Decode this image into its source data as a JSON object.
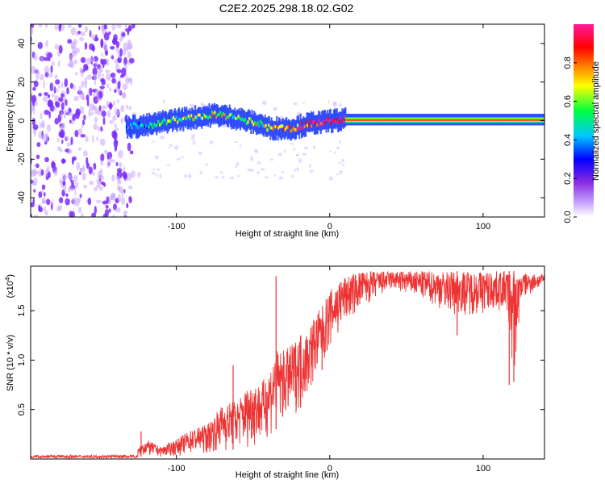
{
  "title": "C2E2.2025.298.18.02.G02",
  "chart_data": [
    {
      "type": "heatmap",
      "xlabel": "Height of straight line (km)",
      "ylabel": "Frequency (Hz)",
      "xlim": [
        -195,
        140
      ],
      "ylim": [
        -50,
        50
      ],
      "x_ticks": [
        -100,
        0,
        100
      ],
      "y_ticks": [
        -40,
        -20,
        0,
        20,
        40
      ],
      "noise_region_x": [
        -195,
        -128
      ],
      "ridge": {
        "x": [
          -133,
          -125,
          -115,
          -105,
          -95,
          -85,
          -75,
          -65,
          -55,
          -45,
          -40,
          -35,
          -30,
          -25,
          -20,
          -15,
          -10,
          -5,
          0,
          5,
          10,
          20,
          40,
          60,
          80,
          100,
          120,
          140
        ],
        "freq": [
          -3,
          -3,
          -2,
          0,
          1,
          2,
          3,
          2,
          0,
          -2,
          -4,
          -4,
          -4,
          -4,
          -3,
          -2,
          -1,
          -1,
          0,
          0,
          0.5,
          0.5,
          0.5,
          0.5,
          0.5,
          0.5,
          0.5,
          0.5
        ],
        "amplitude": [
          0.3,
          0.45,
          0.5,
          0.55,
          0.6,
          0.6,
          0.65,
          0.6,
          0.55,
          0.6,
          0.7,
          0.75,
          0.75,
          0.8,
          0.85,
          0.85,
          0.9,
          0.9,
          0.95,
          0.98,
          1.0,
          1.0,
          1.0,
          1.0,
          1.0,
          1.0,
          1.0,
          1.0
        ]
      },
      "colorbar": {
        "label": "Normalized spectral amplitude",
        "ticks": [
          0.0,
          0.2,
          0.4,
          0.6,
          0.8
        ],
        "range": [
          0,
          1
        ],
        "stops": [
          "#ffffff",
          "#9b30ff",
          "#0000ff",
          "#00c8ff",
          "#00ff00",
          "#ffff00",
          "#ff8000",
          "#ff0000",
          "#ff00aa"
        ]
      },
      "colors": {
        "noise": "#7b2cff",
        "noise_light": "#c9a6ff"
      }
    },
    {
      "type": "line",
      "xlabel": "Height of straight line (km)",
      "ylabel": "SNR (10 * v/v)",
      "scale_label": "(x10^4)",
      "scale_base": "(x10",
      "scale_exp": "4",
      "scale_close": ")",
      "xlim": [
        -195,
        140
      ],
      "ylim": [
        0,
        1.95
      ],
      "x_ticks": [
        -100,
        0,
        100
      ],
      "y_ticks": [
        0.5,
        1.0,
        1.5
      ],
      "color": "#ee3333",
      "envelope": {
        "x": [
          -195,
          -150,
          -130,
          -125,
          -120,
          -110,
          -100,
          -90,
          -80,
          -70,
          -60,
          -50,
          -45,
          -40,
          -35,
          -30,
          -25,
          -20,
          -15,
          -10,
          -5,
          0,
          5,
          10,
          20,
          30,
          40,
          60,
          80,
          100,
          115,
          120,
          125,
          140
        ],
        "high": [
          0.03,
          0.04,
          0.05,
          0.1,
          0.2,
          0.12,
          0.2,
          0.3,
          0.35,
          0.55,
          0.6,
          0.8,
          0.75,
          0.9,
          1.1,
          1.1,
          1.15,
          1.25,
          1.3,
          1.45,
          1.55,
          1.7,
          1.8,
          1.85,
          1.9,
          1.9,
          1.9,
          1.9,
          1.9,
          1.9,
          1.9,
          1.9,
          1.88,
          1.87
        ],
        "low": [
          0.0,
          0.0,
          0.0,
          0.02,
          0.03,
          0.02,
          0.03,
          0.05,
          0.05,
          0.08,
          0.1,
          0.12,
          0.15,
          0.2,
          0.3,
          0.35,
          0.4,
          0.5,
          0.6,
          0.75,
          0.9,
          1.1,
          1.2,
          1.35,
          1.5,
          1.6,
          1.7,
          1.6,
          1.45,
          1.45,
          1.5,
          0.75,
          1.6,
          1.75
        ]
      },
      "spikes": [
        {
          "x": -123,
          "y": 0.28
        },
        {
          "x": -63,
          "y": 0.95
        },
        {
          "x": -35,
          "y": 1.85
        },
        {
          "x": -19,
          "y": 1.25
        },
        {
          "x": -5,
          "y": 1.3
        }
      ],
      "dips": [
        {
          "x": 83,
          "y": 1.25
        },
        {
          "x": 117,
          "y": 0.75
        },
        {
          "x": 120,
          "y": 0.78
        }
      ]
    }
  ]
}
